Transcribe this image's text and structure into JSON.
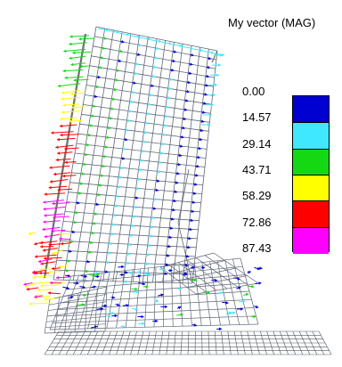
{
  "legend": {
    "title": "My vector (MAG)",
    "labels": [
      "0.00",
      "14.57",
      "29.14",
      "43.71",
      "58.29",
      "72.86",
      "87.43"
    ],
    "colors": [
      "#0000d0",
      "#40e8ff",
      "#14d814",
      "#ffff00",
      "#ff0000",
      "#ff00ff"
    ]
  },
  "colors": {
    "mesh": "#606878",
    "background": "#ffffff"
  }
}
